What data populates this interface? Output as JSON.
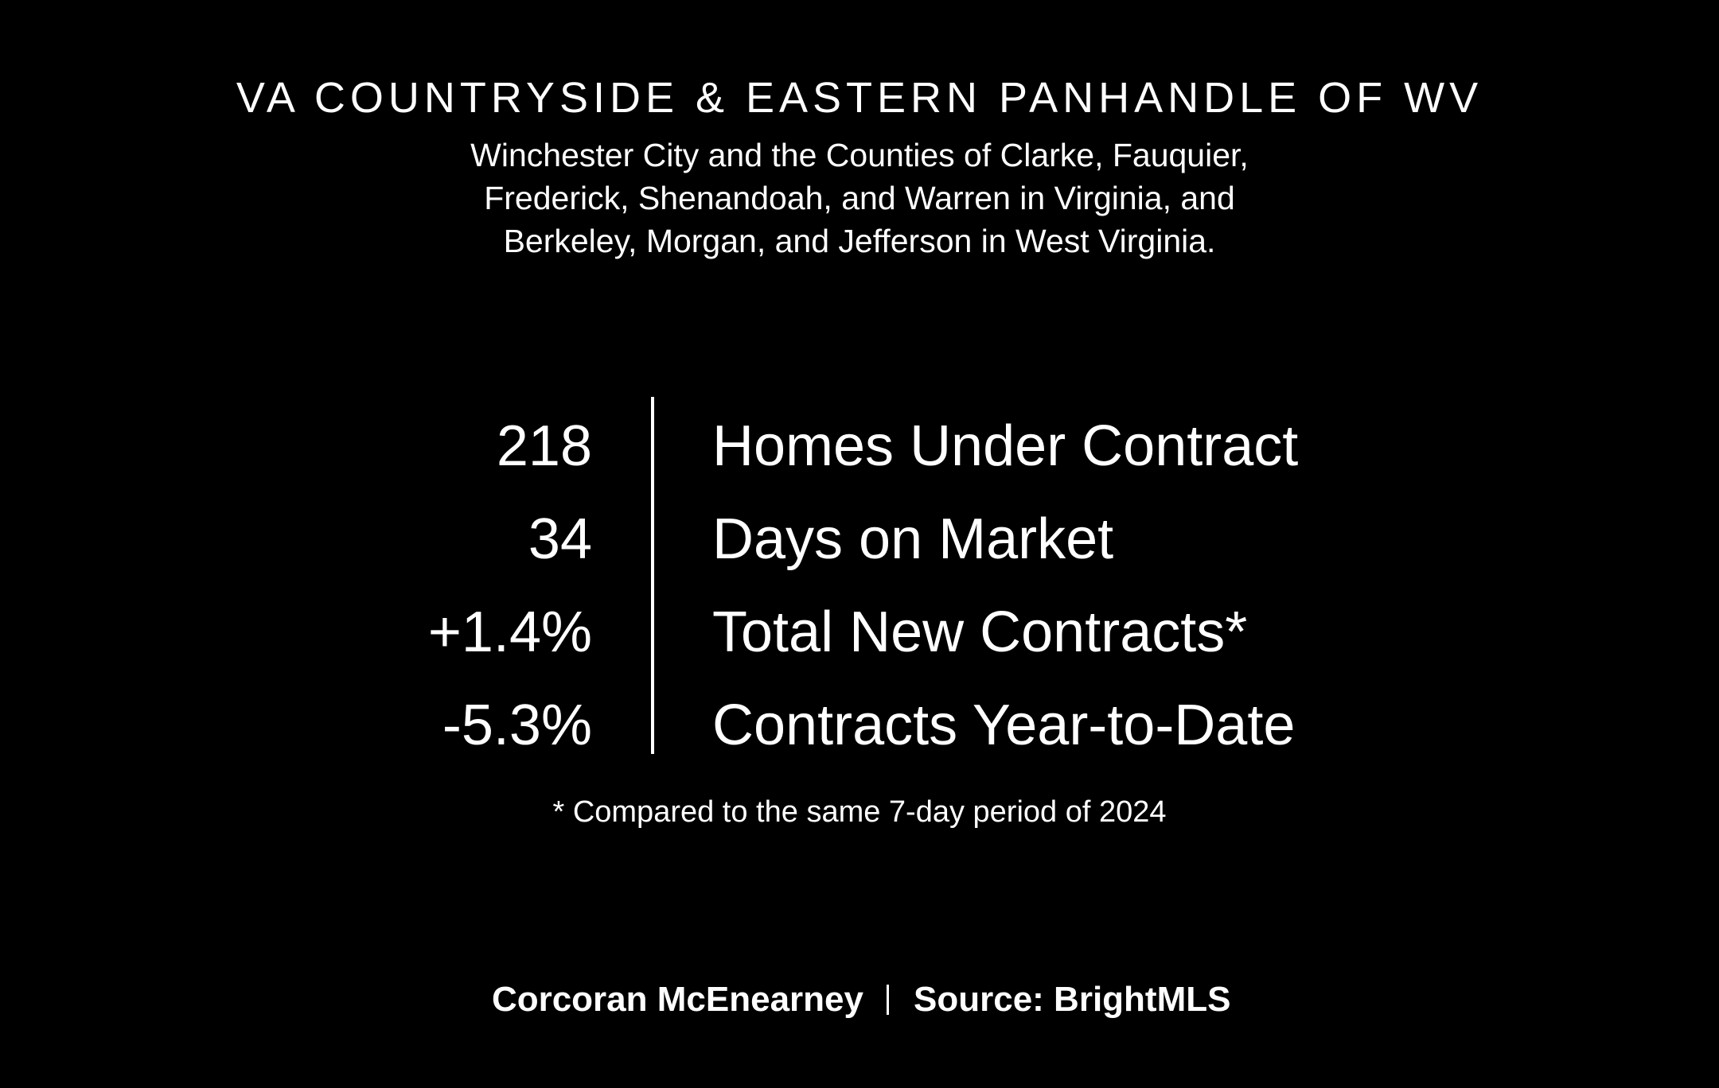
{
  "header": {
    "title": "VA COUNTRYSIDE & EASTERN PANHANDLE OF WV",
    "subtitle_lines": [
      "Winchester City and the Counties of Clarke, Fauquier,",
      "Frederick, Shenandoah, and Warren in Virginia, and",
      "Berkeley, Morgan, and Jefferson in West Virginia."
    ]
  },
  "stats": [
    {
      "value": "218",
      "label": "Homes Under Contract"
    },
    {
      "value": "34",
      "label": "Days on Market"
    },
    {
      "value": "+1.4%",
      "label": "Total New Contracts*"
    },
    {
      "value": "-5.3%",
      "label": "Contracts Year-to-Date"
    }
  ],
  "footnote": "* Compared to the same 7-day period of 2024",
  "footer": {
    "brand": "Corcoran McEnearney",
    "source": "Source: BrightMLS"
  }
}
